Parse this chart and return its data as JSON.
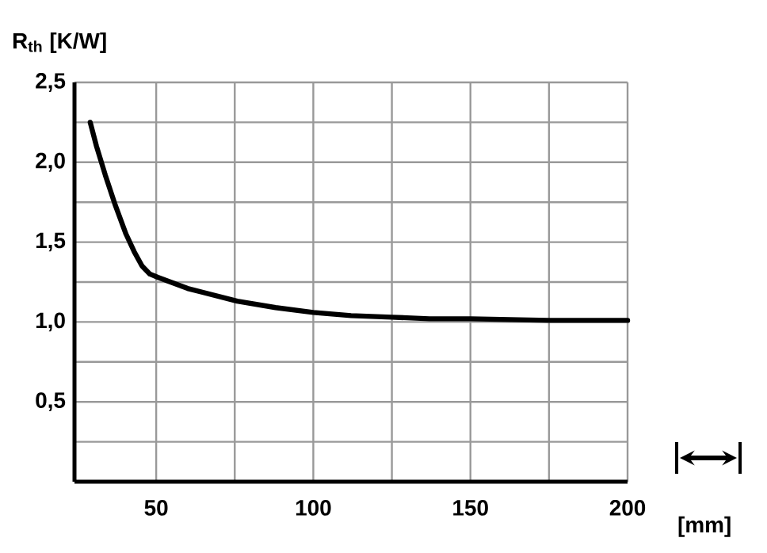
{
  "chart_data": {
    "type": "line",
    "ylabel": "R$_{th}$ [K/W]",
    "xlabel": "[mm]",
    "x": [
      29,
      31,
      33.8,
      37,
      40.4,
      43,
      45.5,
      48,
      50.5,
      60,
      75.8,
      88,
      100,
      112,
      125,
      137,
      150,
      175,
      200
    ],
    "values": [
      2.25,
      2.1,
      1.92,
      1.73,
      1.55,
      1.44,
      1.35,
      1.3,
      1.28,
      1.21,
      1.13,
      1.09,
      1.06,
      1.04,
      1.03,
      1.02,
      1.02,
      1.01,
      1.01
    ],
    "color": "#000000",
    "grid": true,
    "marker": "none",
    "line_style": "solid",
    "xlim": [
      24,
      200
    ],
    "ylim": [
      0,
      2.5
    ],
    "xticks": [
      50,
      {
        "value": 75,
        "label": null
      },
      100,
      {
        "value": 125,
        "label": null
      },
      150,
      {
        "value": 175,
        "label": null
      },
      200
    ],
    "yticks": [
      {
        "value": 0,
        "label": null
      },
      {
        "value": 0.25,
        "label": null
      },
      {
        "value": 0.5,
        "label": "0,5"
      },
      {
        "value": 0.75,
        "label": null
      },
      {
        "value": 1.0,
        "label": "1,0"
      },
      {
        "value": 1.25,
        "label": null
      },
      {
        "value": 1.5,
        "label": "1,5"
      },
      {
        "value": 1.75,
        "label": null
      },
      {
        "value": 2.0,
        "label": "2,0"
      },
      {
        "value": 2.25,
        "label": null
      },
      {
        "value": 2.5,
        "label": "2,5"
      }
    ]
  }
}
